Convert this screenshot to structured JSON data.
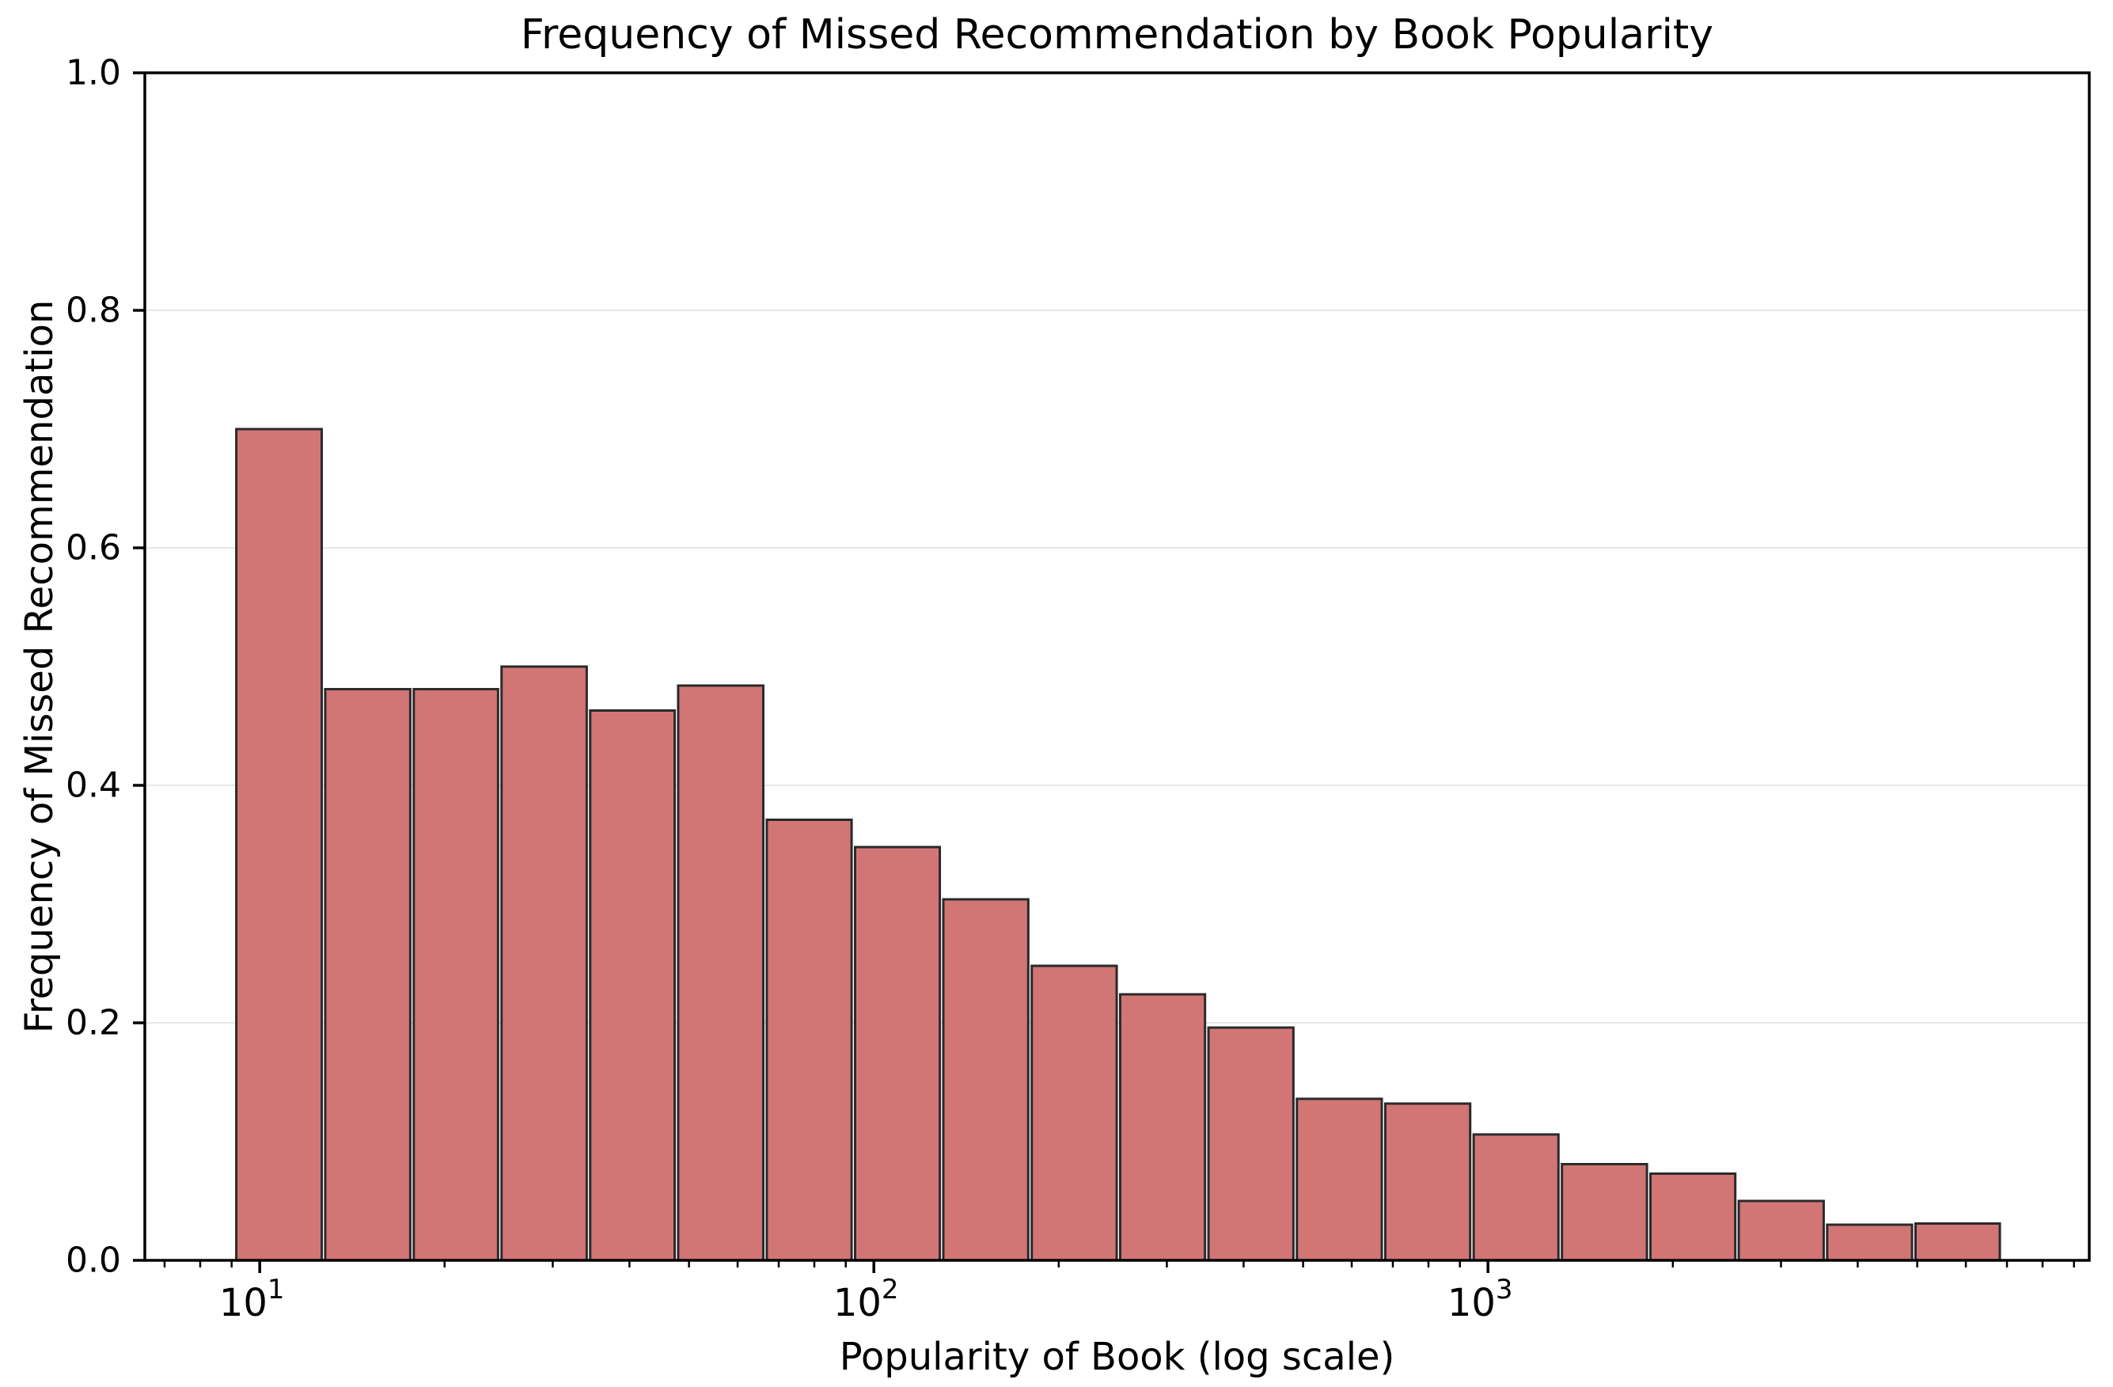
{
  "chart_data": {
    "type": "bar",
    "subtype": "histogram-log-x",
    "title": "Frequency of Missed Recommendation by Book Popularity",
    "xlabel": "Popularity of Book (log scale)",
    "ylabel": "Frequency of Missed Recommendation",
    "x_scale": "log",
    "xlim": [
      6.5,
      9530
    ],
    "ylim": [
      0.0,
      1.0
    ],
    "y_ticks": [
      0.0,
      0.2,
      0.4,
      0.6,
      0.8,
      1.0
    ],
    "x_major_ticks": [
      10,
      100,
      1000
    ],
    "x_major_tick_labels": [
      "10^1",
      "10^2",
      "10^3"
    ],
    "grid": "horizontal",
    "legend_position": "none",
    "bin_edges": [
      9.1,
      12.7,
      17.7,
      24.6,
      34.3,
      47.7,
      66.5,
      92.6,
      128.9,
      179.6,
      250.2,
      348.4,
      485.3,
      676,
      941.6,
      1311,
      1827,
      2544,
      3544,
      4936,
      6860
    ],
    "frequencies": [
      0.7,
      0.481,
      0.481,
      0.5,
      0.463,
      0.484,
      0.371,
      0.348,
      0.304,
      0.248,
      0.224,
      0.196,
      0.136,
      0.132,
      0.106,
      0.081,
      0.073,
      0.05,
      0.03,
      0.031
    ],
    "colors": {
      "bar_fill": "#D27575",
      "bar_edge": "#2A2A2A",
      "gridline": "#E7E7E7",
      "axis": "#000000",
      "background": "#FFFFFF"
    }
  }
}
